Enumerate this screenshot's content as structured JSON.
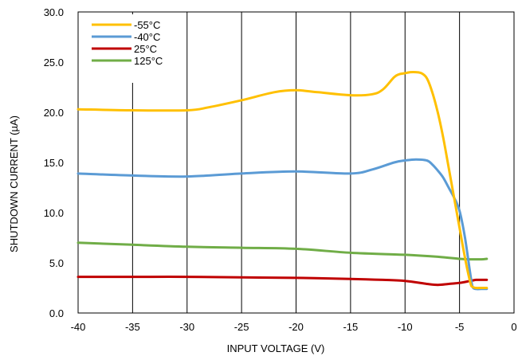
{
  "chart_data": {
    "type": "line",
    "title": "",
    "xlabel": "INPUT VOLTAGE (V)",
    "ylabel": "SHUTDOWN CURRENT (µA)",
    "xlim": [
      -40,
      0
    ],
    "ylim": [
      0,
      30
    ],
    "x_ticks": [
      "-40",
      "-35",
      "-30",
      "-25",
      "-20",
      "-15",
      "-10",
      "-5",
      "0"
    ],
    "y_ticks": [
      "0.0",
      "5.0",
      "10.0",
      "15.0",
      "20.0",
      "25.0",
      "30.0"
    ],
    "grid": "vertical",
    "legend_position": "top-left",
    "series": [
      {
        "name": "-55°C",
        "color": "#FFC000",
        "x": [
          -40,
          -35,
          -30,
          -28,
          -25,
          -22,
          -20,
          -18,
          -15,
          -13,
          -12,
          -11,
          -10.5,
          -10,
          -9.5,
          -9,
          -8.5,
          -8,
          -7.5,
          -7,
          -6.5,
          -6,
          -5.5,
          -5,
          -4.5,
          -4,
          -3.8,
          -3.5,
          -3,
          -2.5
        ],
        "y": [
          20.3,
          20.2,
          20.2,
          20.5,
          21.2,
          22.0,
          22.2,
          22.0,
          21.7,
          21.8,
          22.3,
          23.5,
          23.8,
          23.9,
          24.0,
          24.0,
          23.9,
          23.4,
          22.0,
          20.0,
          17.5,
          14.5,
          11.5,
          8.5,
          5.5,
          3.0,
          2.6,
          2.5,
          2.5,
          2.5
        ]
      },
      {
        "name": "-40°C",
        "color": "#5B9BD5",
        "x": [
          -40,
          -35,
          -30,
          -25,
          -20,
          -15,
          -13,
          -11,
          -10,
          -9,
          -8,
          -7.5,
          -7,
          -6.5,
          -6,
          -5.5,
          -5,
          -4.5,
          -4,
          -3.8,
          -3.5,
          -3,
          -2.5
        ],
        "y": [
          13.9,
          13.7,
          13.6,
          13.9,
          14.1,
          13.9,
          14.3,
          15.0,
          15.2,
          15.3,
          15.2,
          14.8,
          14.2,
          13.5,
          12.5,
          11.5,
          10.2,
          7.5,
          3.8,
          2.6,
          2.4,
          2.4,
          2.4
        ]
      },
      {
        "name": "25°C",
        "color": "#C00000",
        "x": [
          -40,
          -35,
          -30,
          -25,
          -20,
          -15,
          -12,
          -10,
          -8,
          -7,
          -6,
          -5,
          -4,
          -3.5,
          -3,
          -2.5
        ],
        "y": [
          3.6,
          3.6,
          3.6,
          3.55,
          3.5,
          3.4,
          3.3,
          3.2,
          2.9,
          2.8,
          2.9,
          3.0,
          3.2,
          3.3,
          3.3,
          3.3
        ]
      },
      {
        "name": "125°C",
        "color": "#70AD47",
        "x": [
          -40,
          -35,
          -30,
          -25,
          -20,
          -15,
          -10,
          -7,
          -5,
          -4,
          -3,
          -2.5
        ],
        "y": [
          7.0,
          6.8,
          6.6,
          6.5,
          6.4,
          6.0,
          5.8,
          5.6,
          5.4,
          5.35,
          5.35,
          5.4
        ]
      }
    ]
  }
}
